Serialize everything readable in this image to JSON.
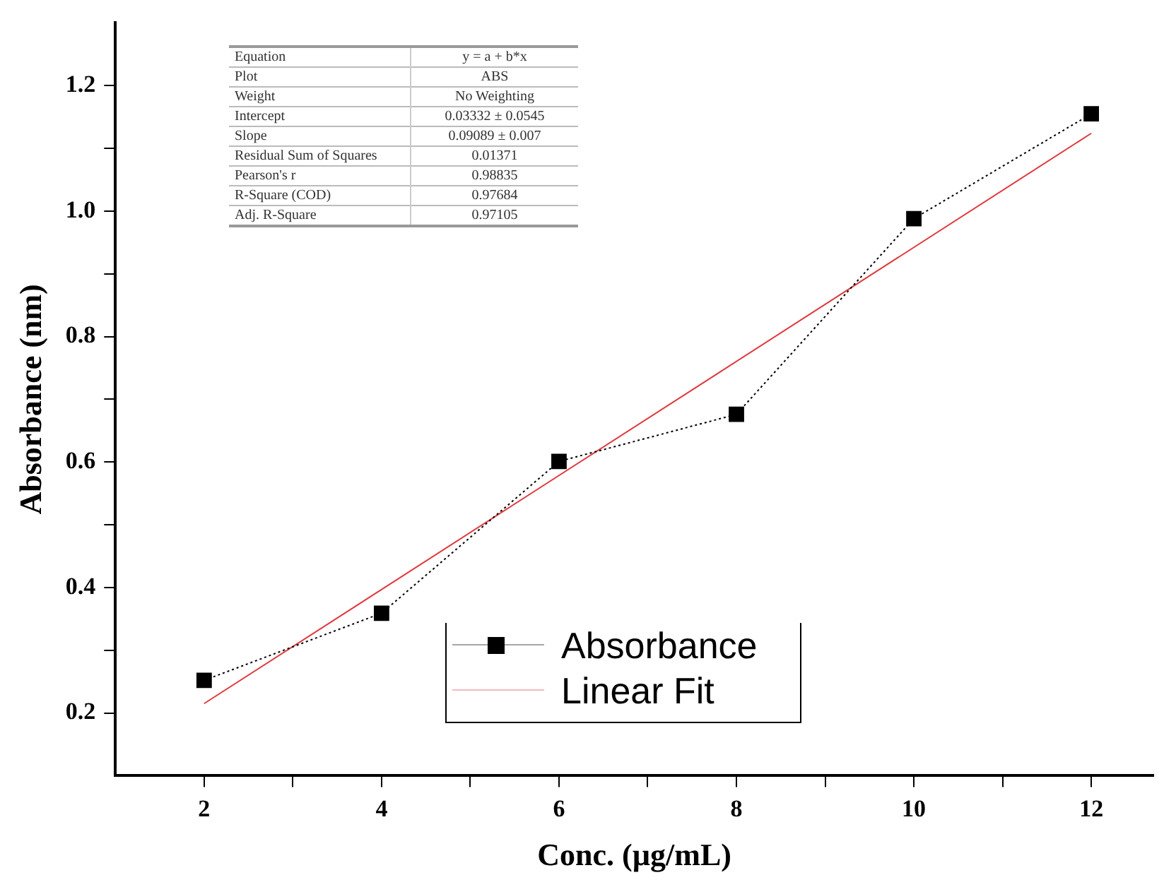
{
  "chart_data": {
    "type": "line",
    "xlabel": "Conc. (µg/mL)",
    "ylabel": "Absorbance (nm)",
    "xlim": [
      1,
      12.7
    ],
    "xticks": [
      2,
      4,
      6,
      8,
      10,
      12
    ],
    "ylim": [
      0.1,
      1.3
    ],
    "yticks": [
      0.2,
      0.4,
      0.6,
      0.8,
      {
        "value": 1.0,
        "label": "1.0"
      },
      1.2
    ],
    "grid": false,
    "legend": "bottom",
    "series": [
      {
        "name": "Absorbance",
        "color": "#000000",
        "x": [
          2,
          4,
          6,
          8,
          10,
          12
        ],
        "values": [
          0.252,
          0.359,
          0.601,
          0.676,
          0.988,
          1.155
        ],
        "marker": "square",
        "line_style": "dotted"
      },
      {
        "name": "Linear Fit",
        "color": "#e0393e",
        "type": "line",
        "x": [
          2,
          12
        ],
        "values": [
          0.215,
          1.124
        ],
        "marker": "none",
        "line_style": "solid"
      }
    ],
    "annotations": [
      "Equation",
      "y = a + b*x",
      "Plot",
      "ABS",
      "Weight",
      "No Weighting",
      "Intercept",
      "0.03332 ± 0.0545",
      "Slope",
      "0.09089 ± 0.007",
      "Residual Sum of Squares",
      "0.01371",
      "Pearson's r",
      "0.98835",
      "R-Square (COD)",
      "0.97684",
      "Adj. R-Square",
      "0.97105"
    ]
  }
}
